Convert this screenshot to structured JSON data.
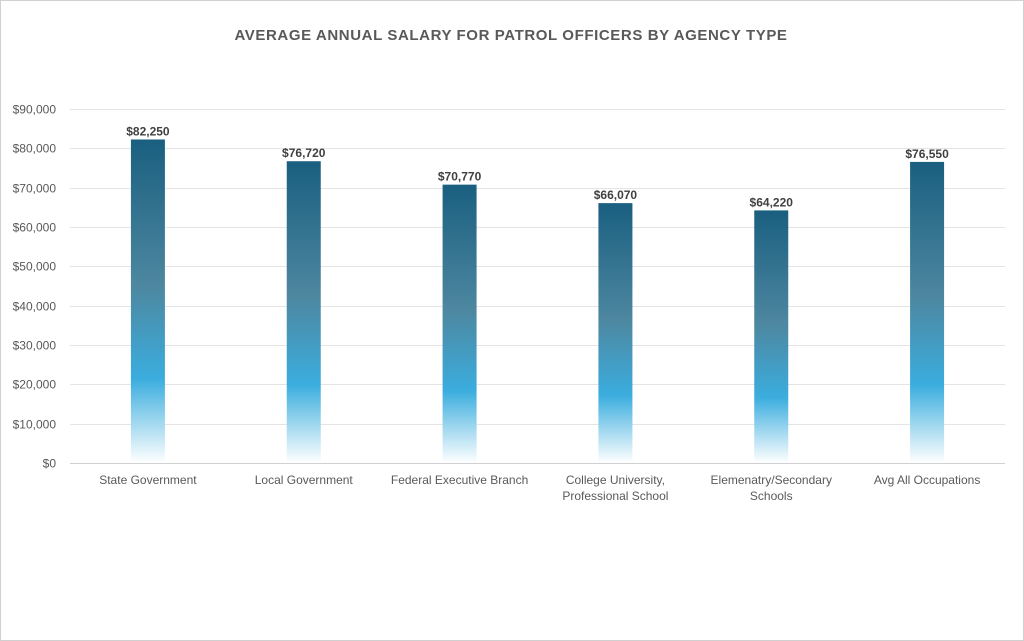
{
  "chart_data": {
    "type": "bar",
    "title": "AVERAGE ANNUAL SALARY FOR PATROL OFFICERS BY AGENCY TYPE",
    "xlabel": "",
    "ylabel": "",
    "categories": [
      [
        "State Government"
      ],
      [
        "Local Government"
      ],
      [
        "Federal Executive Branch"
      ],
      [
        "College University,",
        "Professional School"
      ],
      [
        "Elemenatry/Secondary",
        "Schools"
      ],
      [
        "Avg All Occupations"
      ]
    ],
    "values": [
      82250,
      76720,
      70770,
      66070,
      64220,
      76550
    ],
    "data_labels": [
      "$82,250",
      "$76,720",
      "$70,770",
      "$66,070",
      "$64,220",
      "$76,550"
    ],
    "ylim": [
      0,
      90000
    ],
    "yticks": [
      0,
      10000,
      20000,
      30000,
      40000,
      50000,
      60000,
      70000,
      80000,
      90000
    ],
    "ytick_labels": [
      "$0",
      "$10,000",
      "$20,000",
      "$30,000",
      "$40,000",
      "$50,000",
      "$60,000",
      "$70,000",
      "$80,000",
      "$90,000"
    ],
    "grid": true,
    "legend": "none",
    "colors": {
      "top": "#1a5f80",
      "mid": "#4d87a0",
      "bright": "#3badde",
      "bottom": "#ffffff"
    }
  }
}
